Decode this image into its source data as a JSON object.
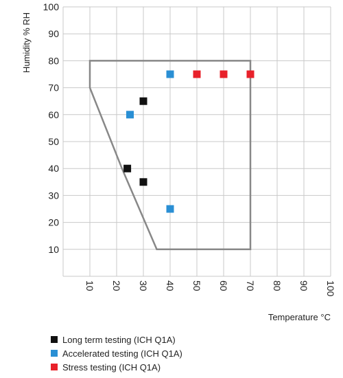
{
  "chart_data": {
    "type": "scatter",
    "title": "",
    "xlabel": "Temperature °C",
    "ylabel": "Humidity % RH",
    "xlim": [
      0,
      100
    ],
    "ylim": [
      0,
      100
    ],
    "x_ticks": [
      "10",
      "20",
      "30",
      "40",
      "50",
      "60",
      "70",
      "80",
      "90",
      "100"
    ],
    "y_ticks": [
      "10",
      "20",
      "30",
      "40",
      "50",
      "60",
      "70",
      "80",
      "90",
      "100"
    ],
    "grid": true,
    "legend_position": "bottom-left",
    "region_outline": {
      "color": "#888888",
      "points": [
        [
          10,
          80
        ],
        [
          70,
          80
        ],
        [
          70,
          10
        ],
        [
          35,
          10
        ],
        [
          22,
          40
        ],
        [
          10,
          70
        ]
      ]
    },
    "series": [
      {
        "name": "Long term testing (ICH Q1A)",
        "color": "#111111",
        "points": [
          [
            30,
            65
          ],
          [
            24,
            40
          ],
          [
            30,
            35
          ]
        ]
      },
      {
        "name": "Accelerated testing (ICH Q1A)",
        "color": "#2a8fd4",
        "points": [
          [
            40,
            75
          ],
          [
            25,
            60
          ],
          [
            40,
            25
          ]
        ]
      },
      {
        "name": "Stress testing (ICH Q1A)",
        "color": "#e8212a",
        "points": [
          [
            50,
            75
          ],
          [
            60,
            75
          ],
          [
            70,
            75
          ]
        ]
      }
    ]
  }
}
